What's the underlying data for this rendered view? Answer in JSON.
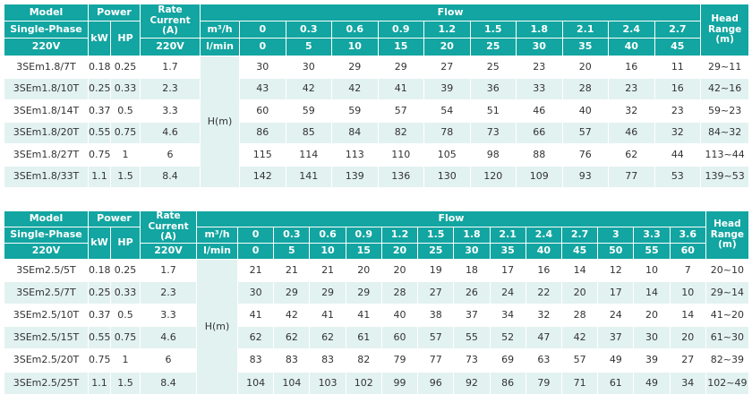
{
  "tables": [
    {
      "header": {
        "model": "Model",
        "power": "Power",
        "rate_current_line1": "Rate",
        "rate_current_line2": "Current",
        "rate_current_line3": "(A)",
        "flow": "Flow",
        "head_line1": "Head",
        "head_line2": "Range",
        "head_line3": "(m)",
        "single_phase": "Single-Phase",
        "kw": "kW",
        "hp": "HP",
        "flow_unit_m3h": "m³/h",
        "voltage": "220V",
        "voltage_current": "220V",
        "flow_unit_lmin": "l/min"
      },
      "flow_m3h": [
        "0",
        "0.3",
        "0.6",
        "0.9",
        "1.2",
        "1.5",
        "1.8",
        "2.1",
        "2.4",
        "2.7"
      ],
      "flow_lmin": [
        "0",
        "5",
        "10",
        "15",
        "20",
        "25",
        "30",
        "35",
        "40",
        "45"
      ],
      "head_label": "H(m)",
      "rows": [
        {
          "model": "3SEm1.8/7T",
          "kw": "0.18",
          "hp": "0.25",
          "current": "1.7",
          "heads": [
            "30",
            "30",
            "29",
            "29",
            "27",
            "25",
            "23",
            "20",
            "16",
            "11"
          ],
          "range": "29~11"
        },
        {
          "model": "3SEm1.8/10T",
          "kw": "0.25",
          "hp": "0.33",
          "current": "2.3",
          "heads": [
            "43",
            "42",
            "42",
            "41",
            "39",
            "36",
            "33",
            "28",
            "23",
            "16"
          ],
          "range": "42~16"
        },
        {
          "model": "3SEm1.8/14T",
          "kw": "0.37",
          "hp": "0.5",
          "current": "3.3",
          "heads": [
            "60",
            "59",
            "59",
            "57",
            "54",
            "51",
            "46",
            "40",
            "32",
            "23"
          ],
          "range": "59~23"
        },
        {
          "model": "3SEm1.8/20T",
          "kw": "0.55",
          "hp": "0.75",
          "current": "4.6",
          "heads": [
            "86",
            "85",
            "84",
            "82",
            "78",
            "73",
            "66",
            "57",
            "46",
            "32"
          ],
          "range": "84~32"
        },
        {
          "model": "3SEm1.8/27T",
          "kw": "0.75",
          "hp": "1",
          "current": "6",
          "heads": [
            "115",
            "114",
            "113",
            "110",
            "105",
            "98",
            "88",
            "76",
            "62",
            "44"
          ],
          "range": "113~44"
        },
        {
          "model": "3SEm1.8/33T",
          "kw": "1.1",
          "hp": "1.5",
          "current": "8.4",
          "heads": [
            "142",
            "141",
            "139",
            "136",
            "130",
            "120",
            "109",
            "93",
            "77",
            "53"
          ],
          "range": "139~53"
        }
      ]
    },
    {
      "header": {
        "model": "Model",
        "power": "Power",
        "rate_current_line1": "Rate",
        "rate_current_line2": "Current",
        "rate_current_line3": "(A)",
        "flow": "Flow",
        "head_line1": "Head",
        "head_line2": "Range",
        "head_line3": "(m)",
        "single_phase": "Single-Phase",
        "kw": "kW",
        "hp": "HP",
        "flow_unit_m3h": "m³/h",
        "voltage": "220V",
        "voltage_current": "220V",
        "flow_unit_lmin": "l/min"
      },
      "flow_m3h": [
        "0",
        "0.3",
        "0.6",
        "0.9",
        "1.2",
        "1.5",
        "1.8",
        "2.1",
        "2.4",
        "2.7",
        "3",
        "3.3",
        "3.6"
      ],
      "flow_lmin": [
        "0",
        "5",
        "10",
        "15",
        "20",
        "25",
        "30",
        "35",
        "40",
        "45",
        "50",
        "55",
        "60"
      ],
      "head_label": "H(m)",
      "rows": [
        {
          "model": "3SEm2.5/5T",
          "kw": "0.18",
          "hp": "0.25",
          "current": "1.7",
          "heads": [
            "21",
            "21",
            "21",
            "20",
            "20",
            "19",
            "18",
            "17",
            "16",
            "14",
            "12",
            "10",
            "7"
          ],
          "range": "20~10"
        },
        {
          "model": "3SEm2.5/7T",
          "kw": "0.25",
          "hp": "0.33",
          "current": "2.3",
          "heads": [
            "30",
            "29",
            "29",
            "29",
            "28",
            "27",
            "26",
            "24",
            "22",
            "20",
            "17",
            "14",
            "10"
          ],
          "range": "29~14"
        },
        {
          "model": "3SEm2.5/10T",
          "kw": "0.37",
          "hp": "0.5",
          "current": "3.3",
          "heads": [
            "41",
            "42",
            "41",
            "41",
            "40",
            "38",
            "37",
            "34",
            "32",
            "28",
            "24",
            "20",
            "14"
          ],
          "range": "41~20"
        },
        {
          "model": "3SEm2.5/15T",
          "kw": "0.55",
          "hp": "0.75",
          "current": "4.6",
          "heads": [
            "62",
            "62",
            "62",
            "61",
            "60",
            "57",
            "55",
            "52",
            "47",
            "42",
            "37",
            "30",
            "20"
          ],
          "range": "61~30"
        },
        {
          "model": "3SEm2.5/20T",
          "kw": "0.75",
          "hp": "1",
          "current": "6",
          "heads": [
            "83",
            "83",
            "83",
            "82",
            "79",
            "77",
            "73",
            "69",
            "63",
            "57",
            "49",
            "39",
            "27"
          ],
          "range": "82~39"
        },
        {
          "model": "3SEm2.5/25T",
          "kw": "1.1",
          "hp": "1.5",
          "current": "8.4",
          "heads": [
            "104",
            "104",
            "103",
            "102",
            "99",
            "96",
            "92",
            "86",
            "79",
            "71",
            "61",
            "49",
            "34"
          ],
          "range": "102~49"
        }
      ]
    }
  ]
}
